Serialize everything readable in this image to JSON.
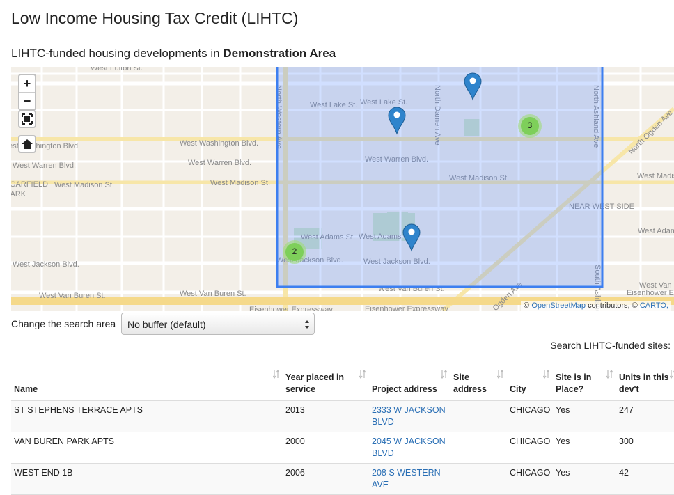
{
  "header": {
    "title": "Low Income Housing Tax Credit (LIHTC)"
  },
  "subtitle": {
    "prefix": "LIHTC-funded housing developments in",
    "area": "Demonstration Area"
  },
  "map": {
    "controls": {
      "zoom_in": "+",
      "zoom_out": "−"
    },
    "clusters": [
      3,
      2
    ],
    "attribution": [
      "©",
      "OpenStreetMap",
      "contributors, ©",
      "CARTO,"
    ],
    "labels": [
      "West Fulton St.",
      "St.",
      "West Washington Blvd.",
      "West Warren Blvd.",
      "GARFIELD",
      "PARK",
      "West Madison St.",
      "West Jackson Blvd.",
      "West Van Buren St.",
      "West Washington Blvd.",
      "West Warren Blvd.",
      "West Madison St.",
      "West Van Buren St.",
      "West Lake St.",
      "West Lake St.",
      "West Warren Blvd.",
      "West Madison St.",
      "NEAR WEST SIDE",
      "West Adams St.",
      "West Adams St.",
      "West Jackson Blvd.",
      "West Jackson Blvd.",
      "West Van Buren St.",
      "Eisenhower Expressway",
      "Eisenhower Expressway",
      "Eisenhower Expressway",
      "West Madison St.",
      "West Adams St.",
      "West Van Buren St.",
      "North Western Ave",
      "North Damen Ave",
      "North Ashland Ave",
      "North Ogden Ave",
      "Ogden Ave",
      "South Ashland Ave"
    ]
  },
  "search_area": {
    "label": "Change the search area",
    "selected": "No buffer (default)"
  },
  "search": {
    "label": "Search LIHTC-funded sites:"
  },
  "table": {
    "columns": [
      "Name",
      "Year placed in service",
      "Project address",
      "Site address",
      "City",
      "Site is in Place?",
      "Units in this dev't"
    ],
    "rows": [
      [
        "ST STEPHENS TERRACE APTS",
        "2013",
        "2333 W JACKSON BLVD",
        "",
        "CHICAGO",
        "Yes",
        "247"
      ],
      [
        "VAN BUREN PARK APTS",
        "2000",
        "2045 W JACKSON BLVD",
        "",
        "CHICAGO",
        "Yes",
        "300"
      ],
      [
        "WEST END 1B",
        "2006",
        "208 S WESTERN AVE",
        "",
        "CHICAGO",
        "Yes",
        "42"
      ]
    ]
  }
}
